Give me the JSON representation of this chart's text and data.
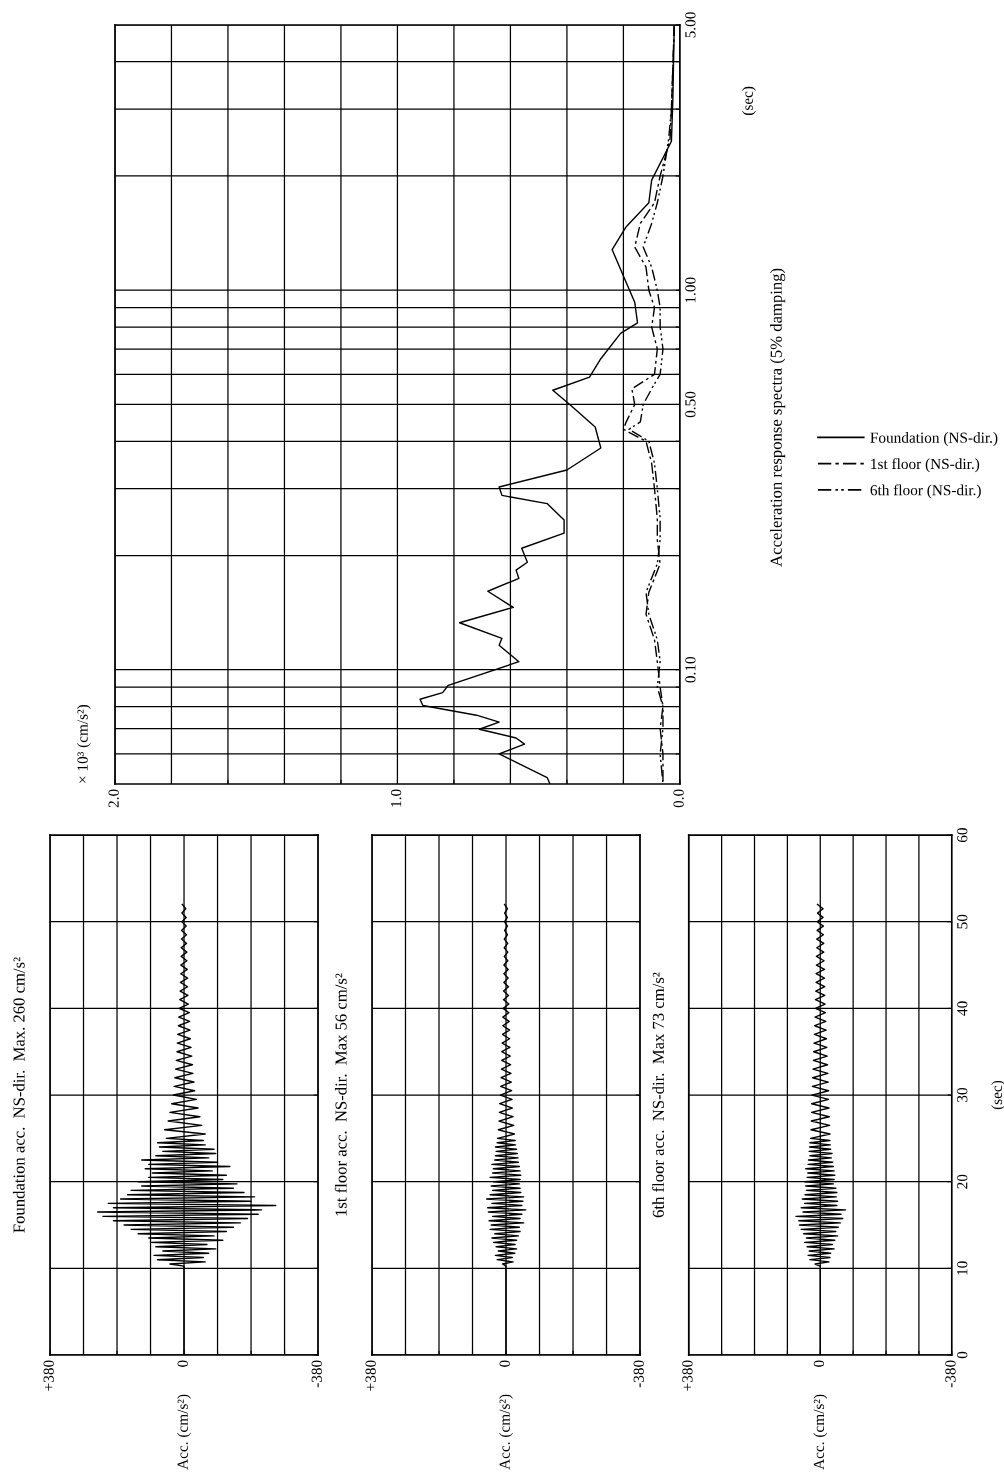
{
  "chart_data": [
    {
      "type": "line",
      "orientation": "horizontal",
      "title": "Foundation acc.  NS-dir.  Max. 260 cm/s²",
      "annotations": [
        "Acc. (cm/s²)"
      ],
      "color": "#000000",
      "grid": true,
      "tick_labels": "x",
      "xlim": [
        380,
        -380
      ],
      "xticks": [
        {
          "value": 380,
          "label": "+380"
        },
        {
          "value": 285,
          "label": null
        },
        {
          "value": 190,
          "label": null
        },
        {
          "value": 95,
          "label": null
        },
        0,
        {
          "value": -95,
          "label": null
        },
        {
          "value": -190,
          "label": null
        },
        {
          "value": -285,
          "label": null
        },
        {
          "value": -380,
          "label": "-380"
        }
      ],
      "ylim": [
        0,
        60
      ],
      "yticks": [
        0,
        10,
        20,
        30,
        40,
        50,
        60
      ],
      "x": [
        0,
        10.25,
        10.5,
        10.75,
        11,
        11.25,
        11.5,
        11.75,
        12,
        12.25,
        12.5,
        12.75,
        13,
        13.25,
        13.5,
        13.75,
        14,
        14.25,
        14.5,
        14.75,
        15,
        15.25,
        15.5,
        15.75,
        16,
        16.25,
        16.5,
        16.75,
        17,
        17.25,
        17.5,
        17.75,
        18,
        18.25,
        18.5,
        18.75,
        19,
        19.25,
        19.5,
        19.75,
        20,
        20.25,
        20.5,
        20.75,
        21,
        21.25,
        21.5,
        21.75,
        22,
        22.25,
        22.5,
        22.75,
        23,
        23.25,
        23.5,
        23.75,
        24,
        24.25,
        24.5,
        24.75,
        25,
        25.5,
        26,
        26.5,
        27,
        27.5,
        28,
        28.5,
        29,
        29.5,
        30,
        30.5,
        31,
        31.5,
        32,
        32.5,
        33,
        33.5,
        34,
        34.5,
        35,
        35.5,
        36,
        36.5,
        37,
        37.5,
        38,
        38.5,
        39,
        39.5,
        40,
        40.5,
        41,
        41.5,
        42,
        42.5,
        43,
        43.5,
        44,
        44.5,
        45,
        45.5,
        46,
        46.5,
        47,
        47.5,
        48,
        48.5,
        49,
        49.5,
        50,
        50.5,
        51,
        51.5,
        52
      ],
      "values": [
        0,
        0,
        40,
        -60,
        75,
        -55,
        85,
        -70,
        60,
        -90,
        80,
        -65,
        95,
        -110,
        100,
        -85,
        130,
        -120,
        150,
        -140,
        170,
        -160,
        200,
        -180,
        230,
        -210,
        245,
        -220,
        200,
        -260,
        215,
        -190,
        180,
        -200,
        160,
        -170,
        150,
        -140,
        120,
        -150,
        130,
        -110,
        100,
        -120,
        90,
        -80,
        110,
        -130,
        100,
        -95,
        120,
        -70,
        80,
        -90,
        60,
        -85,
        70,
        -60,
        75,
        -55,
        50,
        -60,
        55,
        -50,
        45,
        -45,
        40,
        -40,
        35,
        -35,
        30,
        -30,
        28,
        -28,
        26,
        -25,
        24,
        -24,
        22,
        -22,
        20,
        -20,
        19,
        -18,
        18,
        -17,
        16,
        -16,
        15,
        -15,
        14,
        -12,
        12,
        -11,
        11,
        -10,
        10,
        -10,
        9,
        -9,
        9,
        -8,
        8,
        -8,
        8,
        -7,
        7,
        -7,
        7,
        -6,
        6,
        -6,
        6,
        -5,
        5
      ]
    },
    {
      "type": "line",
      "orientation": "horizontal",
      "title": "1st floor acc.  NS-dir.  Max 56 cm/s²",
      "annotations": [
        "Acc. (cm/s²)"
      ],
      "color": "#000000",
      "grid": true,
      "tick_labels": "x",
      "xlim": [
        380,
        -380
      ],
      "xticks": [
        {
          "value": 380,
          "label": "+380"
        },
        {
          "value": 285,
          "label": null
        },
        {
          "value": 190,
          "label": null
        },
        {
          "value": 95,
          "label": null
        },
        0,
        {
          "value": -95,
          "label": null
        },
        {
          "value": -190,
          "label": null
        },
        {
          "value": -285,
          "label": null
        },
        {
          "value": -380,
          "label": "-380"
        }
      ],
      "ylim": [
        0,
        60
      ],
      "yticks": [
        0,
        10,
        20,
        30,
        40,
        50,
        60
      ],
      "x": [
        0,
        10.25,
        10.5,
        10.75,
        11,
        11.25,
        11.5,
        11.75,
        12,
        12.25,
        12.5,
        12.75,
        13,
        13.25,
        13.5,
        13.75,
        14,
        14.25,
        14.5,
        14.75,
        15,
        15.25,
        15.5,
        15.75,
        16,
        16.25,
        16.5,
        16.75,
        17,
        17.25,
        17.5,
        17.75,
        18,
        18.25,
        18.5,
        18.75,
        19,
        19.25,
        19.5,
        19.75,
        20,
        20.25,
        20.5,
        20.75,
        21,
        21.25,
        21.5,
        21.75,
        22,
        22.25,
        22.5,
        22.75,
        23,
        23.25,
        23.5,
        23.75,
        24,
        24.25,
        24.5,
        24.75,
        25,
        25.5,
        26,
        26.5,
        27,
        27.5,
        28,
        28.5,
        29,
        29.5,
        30,
        30.5,
        31,
        31.5,
        32,
        32.5,
        33,
        33.5,
        34,
        34.5,
        35,
        35.5,
        36,
        36.5,
        37,
        37.5,
        38,
        38.5,
        39,
        39.5,
        40,
        40.5,
        41,
        41.5,
        42,
        42.5,
        43,
        43.5,
        44,
        44.5,
        45,
        45.5,
        46,
        46.5,
        47,
        47.5,
        48,
        48.5,
        49,
        49.5,
        50,
        50.5,
        51,
        51.5,
        52
      ],
      "values": [
        0,
        0,
        10,
        -20,
        25,
        -18,
        30,
        -25,
        22,
        -30,
        28,
        -26,
        35,
        -30,
        40,
        -35,
        32,
        -40,
        45,
        -38,
        42,
        -50,
        48,
        -40,
        38,
        -45,
        50,
        -56,
        52,
        -45,
        40,
        -48,
        55,
        -50,
        45,
        -42,
        38,
        -40,
        42,
        -38,
        35,
        -40,
        45,
        -42,
        38,
        -40,
        36,
        -38,
        40,
        -35,
        32,
        -34,
        30,
        -32,
        28,
        -30,
        30,
        -27,
        25,
        -26,
        24,
        -24,
        22,
        -22,
        20,
        -20,
        19,
        -18,
        18,
        -17,
        16,
        -16,
        15,
        -15,
        14,
        -14,
        13,
        -13,
        12,
        -12,
        12,
        -11,
        11,
        -10,
        10,
        -10,
        9,
        -9,
        9,
        -8,
        8,
        -8,
        7,
        -7,
        7,
        -7,
        6,
        -6,
        6,
        -6,
        6,
        -5,
        5,
        -5,
        5,
        -5,
        5,
        -4,
        4,
        -4,
        4,
        -4,
        4,
        -4,
        4
      ]
    },
    {
      "type": "line",
      "orientation": "horizontal",
      "title": "6th floor acc.  NS-dir.  Max 73 cm/s²",
      "annotations": [
        "Acc. (cm/s²)"
      ],
      "ylabel": "(sec)",
      "color": "#000000",
      "grid": true,
      "xlim": [
        380,
        -380
      ],
      "xticks": [
        {
          "value": 380,
          "label": "+380"
        },
        {
          "value": 285,
          "label": null
        },
        {
          "value": 190,
          "label": null
        },
        {
          "value": 95,
          "label": null
        },
        0,
        {
          "value": -95,
          "label": null
        },
        {
          "value": -190,
          "label": null
        },
        {
          "value": -285,
          "label": null
        },
        {
          "value": -380,
          "label": "-380"
        }
      ],
      "ylim": [
        0,
        60
      ],
      "yticks": [
        0,
        10,
        20,
        30,
        40,
        50,
        60
      ],
      "x": [
        0,
        10.25,
        10.5,
        10.75,
        11,
        11.25,
        11.5,
        11.75,
        12,
        12.25,
        12.5,
        12.75,
        13,
        13.25,
        13.5,
        13.75,
        14,
        14.25,
        14.5,
        14.75,
        15,
        15.25,
        15.5,
        15.75,
        16,
        16.25,
        16.5,
        16.75,
        17,
        17.25,
        17.5,
        17.75,
        18,
        18.25,
        18.5,
        18.75,
        19,
        19.25,
        19.5,
        19.75,
        20,
        20.25,
        20.5,
        20.75,
        21,
        21.25,
        21.5,
        21.75,
        22,
        22.25,
        22.5,
        22.75,
        23,
        23.25,
        23.5,
        23.75,
        24,
        24.25,
        24.5,
        24.75,
        25,
        25.5,
        26,
        26.5,
        27,
        27.5,
        28,
        28.5,
        29,
        29.5,
        30,
        30.5,
        31,
        31.5,
        32,
        32.5,
        33,
        33.5,
        34,
        34.5,
        35,
        35.5,
        36,
        36.5,
        37,
        37.5,
        38,
        38.5,
        39,
        39.5,
        40,
        40.5,
        41,
        41.5,
        42,
        42.5,
        43,
        43.5,
        44,
        44.5,
        45,
        45.5,
        46,
        46.5,
        47,
        47.5,
        48,
        48.5,
        49,
        49.5,
        50,
        50.5,
        51,
        51.5,
        52
      ],
      "values": [
        0,
        0,
        15,
        -25,
        30,
        -28,
        35,
        -30,
        32,
        -40,
        38,
        -35,
        45,
        -42,
        40,
        -50,
        48,
        -45,
        55,
        -52,
        60,
        -58,
        62,
        -65,
        70,
        -60,
        50,
        -73,
        55,
        -48,
        45,
        -50,
        52,
        -46,
        44,
        -48,
        40,
        -45,
        42,
        -38,
        45,
        -40,
        38,
        -42,
        36,
        -40,
        42,
        -38,
        35,
        -36,
        34,
        -32,
        30,
        -34,
        32,
        -30,
        31,
        -29,
        30,
        -28,
        28,
        -28,
        27,
        -27,
        26,
        -26,
        25,
        -25,
        25,
        -24,
        24,
        -24,
        23,
        -23,
        22,
        -22,
        21,
        -21,
        20,
        -20,
        19,
        -19,
        18,
        -18,
        17,
        -17,
        16,
        -16,
        15,
        -15,
        14,
        -14,
        14,
        -13,
        13,
        -13,
        12,
        -12,
        12,
        -12,
        11,
        -11,
        11,
        -10,
        10,
        -10,
        10,
        -9,
        9,
        -9,
        9,
        -8,
        8,
        -8,
        8
      ]
    },
    {
      "type": "line",
      "orientation": "horizontal",
      "log": "y",
      "legend_title": "Acceleration response spectra (5% damping)",
      "annotations": [
        "× 10³ (cm/s²)"
      ],
      "ylabel": "(sec)",
      "grid": true,
      "legend": "right",
      "xlim": [
        2.0,
        0.0
      ],
      "xticks": [
        {
          "value": 2.0,
          "label": "2.0"
        },
        {
          "value": 1.8,
          "label": null
        },
        {
          "value": 1.6,
          "label": null
        },
        {
          "value": 1.4,
          "label": null
        },
        {
          "value": 1.2,
          "label": null
        },
        {
          "value": 1.0,
          "label": "1.0"
        },
        {
          "value": 0.8,
          "label": null
        },
        {
          "value": 0.6,
          "label": null
        },
        {
          "value": 0.4,
          "label": null
        },
        {
          "value": 0.2,
          "label": null
        },
        {
          "value": 0.0,
          "label": "0.0"
        }
      ],
      "ylim": [
        0.05,
        5.0
      ],
      "yticks": [
        {
          "value": 0.06,
          "label": null
        },
        {
          "value": 0.07,
          "label": null
        },
        {
          "value": 0.08,
          "label": null
        },
        {
          "value": 0.09,
          "label": null
        },
        {
          "value": 0.1,
          "label": "0.10"
        },
        {
          "value": 0.2,
          "label": null
        },
        {
          "value": 0.3,
          "label": null
        },
        {
          "value": 0.4,
          "label": null
        },
        {
          "value": 0.5,
          "label": "0.50"
        },
        {
          "value": 0.6,
          "label": null
        },
        {
          "value": 0.7,
          "label": null
        },
        {
          "value": 0.8,
          "label": null
        },
        {
          "value": 0.9,
          "label": null
        },
        {
          "value": 1.0,
          "label": "1.00"
        },
        {
          "value": 2.0,
          "label": null
        },
        {
          "value": 3.0,
          "label": null
        },
        {
          "value": 4.0,
          "label": null
        },
        {
          "value": 5.0,
          "label": "5.00"
        }
      ],
      "series": [
        {
          "name": "Foundation (NS-dir.)",
          "color": "#000000",
          "line_style": "solid",
          "x": [
            5.0,
            3.18,
            2.47,
            1.95,
            1.7,
            1.47,
            1.28,
            1.09,
            0.93,
            0.82,
            0.77,
            0.66,
            0.59,
            0.545,
            0.5,
            0.436,
            0.384,
            0.336,
            0.303,
            0.288,
            0.274,
            0.248,
            0.229,
            0.209,
            0.192,
            0.183,
            0.174,
            0.161,
            0.146,
            0.133,
            0.121,
            0.116,
            0.105,
            0.091,
            0.087,
            0.0836,
            0.0805,
            0.0759,
            0.0728,
            0.0697,
            0.0661,
            0.0637,
            0.06,
            0.052,
            0.05
          ],
          "values": [
            0.02,
            0.025,
            0.03,
            0.1,
            0.11,
            0.19,
            0.24,
            0.2,
            0.16,
            0.15,
            0.21,
            0.28,
            0.32,
            0.45,
            0.39,
            0.3,
            0.28,
            0.4,
            0.64,
            0.63,
            0.47,
            0.41,
            0.41,
            0.56,
            0.54,
            0.58,
            0.57,
            0.68,
            0.59,
            0.78,
            0.63,
            0.64,
            0.57,
            0.82,
            0.84,
            0.92,
            0.91,
            0.72,
            0.64,
            0.71,
            0.58,
            0.55,
            0.64,
            0.47,
            0.46
          ]
        },
        {
          "name": "1st floor (NS-dir.)",
          "color": "#000000",
          "line_style": "dashed",
          "x": [
            5.0,
            3.0,
            2.5,
            2.0,
            1.7,
            1.5,
            1.3,
            1.15,
            1.0,
            0.9,
            0.8,
            0.7,
            0.6,
            0.55,
            0.5,
            0.45,
            0.43,
            0.4,
            0.35,
            0.3,
            0.25,
            0.22,
            0.19,
            0.16,
            0.14,
            0.12,
            0.105,
            0.09,
            0.08,
            0.07,
            0.06,
            0.05
          ],
          "values": [
            0.02,
            0.03,
            0.035,
            0.07,
            0.09,
            0.14,
            0.16,
            0.12,
            0.11,
            0.09,
            0.1,
            0.08,
            0.09,
            0.17,
            0.16,
            0.19,
            0.2,
            0.12,
            0.1,
            0.09,
            0.08,
            0.08,
            0.07,
            0.11,
            0.12,
            0.09,
            0.08,
            0.07,
            0.06,
            0.07,
            0.06,
            0.06
          ]
        },
        {
          "name": "6th floor (NS-dir.)",
          "color": "#000000",
          "line_style": "dotted",
          "x": [
            5.0,
            3.0,
            2.5,
            2.0,
            1.7,
            1.5,
            1.3,
            1.15,
            1.0,
            0.9,
            0.8,
            0.7,
            0.6,
            0.55,
            0.5,
            0.45,
            0.43,
            0.4,
            0.35,
            0.3,
            0.25,
            0.22,
            0.19,
            0.16,
            0.14,
            0.12,
            0.105,
            0.09,
            0.08,
            0.07,
            0.06,
            0.05
          ],
          "values": [
            0.02,
            0.03,
            0.04,
            0.06,
            0.08,
            0.1,
            0.13,
            0.1,
            0.08,
            0.07,
            0.07,
            0.06,
            0.07,
            0.1,
            0.13,
            0.14,
            0.18,
            0.11,
            0.09,
            0.08,
            0.07,
            0.07,
            0.08,
            0.12,
            0.11,
            0.08,
            0.07,
            0.08,
            0.06,
            0.06,
            0.07,
            0.06
          ]
        }
      ]
    }
  ]
}
